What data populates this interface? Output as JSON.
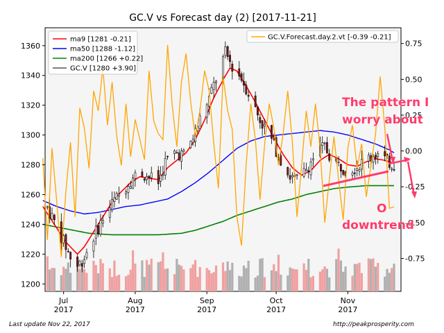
{
  "chart_data": {
    "type": "candlestick",
    "title": "GC.V vs Forecast day (2)  [2017-11-21]",
    "xlabel": "",
    "ylabel": "",
    "ylim": [
      1195,
      1372
    ],
    "ylim_right": [
      -0.98,
      0.86
    ],
    "x_ticks": [
      {
        "label": "Jul",
        "sub": "2017",
        "day": 9
      },
      {
        "label": "Aug",
        "sub": "2017",
        "day": 40
      },
      {
        "label": "Sep",
        "sub": "2017",
        "day": 71
      },
      {
        "label": "Oct",
        "sub": "2017",
        "day": 101
      },
      {
        "label": "Nov",
        "sub": "2017",
        "day": 132
      }
    ],
    "y_ticks_left": [
      1200,
      1220,
      1240,
      1260,
      1280,
      1300,
      1320,
      1340,
      1360
    ],
    "y_ticks_right": [
      "-0.75",
      "-0.50",
      "-0.25",
      "0.00",
      "0.25",
      "0.50",
      "0.75"
    ],
    "y_ticks_right_values": [
      -0.75,
      -0.5,
      -0.25,
      0.0,
      0.25,
      0.5,
      0.75
    ],
    "legend_left": [
      {
        "name": "ma9 [1281 -0.21]",
        "color": "#ff0000"
      },
      {
        "name": "ma50 [1288 -1.12]",
        "color": "#0000ff"
      },
      {
        "name": "ma200 [1266 +0.22]",
        "color": "#008000"
      },
      {
        "name": "GC.V [1280 +3.90]",
        "color": "#555555"
      }
    ],
    "legend_right": [
      {
        "name": "GC.V.Forecast.day.2.vt [-0.39 -0.21]",
        "color": "#ffa500"
      }
    ],
    "legend_placement": [
      "upper-left",
      "upper-right"
    ],
    "price_anchors": [
      [
        0,
        1258
      ],
      [
        3,
        1248
      ],
      [
        7,
        1235
      ],
      [
        10,
        1225
      ],
      [
        12,
        1218
      ],
      [
        15,
        1212
      ],
      [
        18,
        1218
      ],
      [
        22,
        1232
      ],
      [
        26,
        1244
      ],
      [
        30,
        1254
      ],
      [
        34,
        1262
      ],
      [
        38,
        1270
      ],
      [
        42,
        1275
      ],
      [
        46,
        1272
      ],
      [
        50,
        1268
      ],
      [
        53,
        1282
      ],
      [
        57,
        1288
      ],
      [
        61,
        1287
      ],
      [
        65,
        1298
      ],
      [
        69,
        1315
      ],
      [
        72,
        1325
      ],
      [
        76,
        1342
      ],
      [
        79,
        1355
      ],
      [
        82,
        1346
      ],
      [
        86,
        1338
      ],
      [
        90,
        1325
      ],
      [
        94,
        1310
      ],
      [
        98,
        1300
      ],
      [
        101,
        1290
      ],
      [
        104,
        1280
      ],
      [
        107,
        1272
      ],
      [
        110,
        1270
      ],
      [
        113,
        1275
      ],
      [
        116,
        1282
      ],
      [
        119,
        1290
      ],
      [
        122,
        1292
      ],
      [
        125,
        1284
      ],
      [
        128,
        1280
      ],
      [
        131,
        1277
      ],
      [
        134,
        1278
      ],
      [
        137,
        1280
      ],
      [
        140,
        1284
      ],
      [
        143,
        1287
      ],
      [
        146,
        1287
      ],
      [
        149,
        1282
      ],
      [
        152,
        1280
      ]
    ],
    "ma9_anchors": [
      [
        0,
        1252
      ],
      [
        5,
        1240
      ],
      [
        10,
        1228
      ],
      [
        15,
        1220
      ],
      [
        18,
        1225
      ],
      [
        22,
        1235
      ],
      [
        26,
        1245
      ],
      [
        30,
        1255
      ],
      [
        34,
        1262
      ],
      [
        38,
        1268
      ],
      [
        42,
        1272
      ],
      [
        46,
        1271
      ],
      [
        50,
        1270
      ],
      [
        54,
        1278
      ],
      [
        58,
        1283
      ],
      [
        62,
        1288
      ],
      [
        66,
        1297
      ],
      [
        70,
        1310
      ],
      [
        74,
        1325
      ],
      [
        78,
        1337
      ],
      [
        81,
        1345
      ],
      [
        84,
        1343
      ],
      [
        88,
        1333
      ],
      [
        92,
        1322
      ],
      [
        96,
        1310
      ],
      [
        100,
        1298
      ],
      [
        104,
        1287
      ],
      [
        108,
        1278
      ],
      [
        112,
        1273
      ],
      [
        116,
        1276
      ],
      [
        120,
        1283
      ],
      [
        124,
        1287
      ],
      [
        128,
        1284
      ],
      [
        132,
        1280
      ],
      [
        136,
        1279
      ],
      [
        140,
        1282
      ],
      [
        144,
        1284
      ],
      [
        148,
        1283
      ],
      [
        152,
        1281
      ]
    ],
    "ma50_anchors": [
      [
        0,
        1256
      ],
      [
        6,
        1252
      ],
      [
        12,
        1249
      ],
      [
        18,
        1247
      ],
      [
        24,
        1248
      ],
      [
        30,
        1250
      ],
      [
        36,
        1252
      ],
      [
        42,
        1253
      ],
      [
        48,
        1255
      ],
      [
        54,
        1257
      ],
      [
        60,
        1262
      ],
      [
        66,
        1268
      ],
      [
        72,
        1275
      ],
      [
        78,
        1283
      ],
      [
        84,
        1291
      ],
      [
        90,
        1296
      ],
      [
        96,
        1299
      ],
      [
        102,
        1300
      ],
      [
        108,
        1301
      ],
      [
        114,
        1302
      ],
      [
        120,
        1303
      ],
      [
        126,
        1302
      ],
      [
        132,
        1300
      ],
      [
        138,
        1297
      ],
      [
        144,
        1294
      ],
      [
        150,
        1290
      ],
      [
        152,
        1288
      ]
    ],
    "ma200_anchors": [
      [
        0,
        1240
      ],
      [
        10,
        1237
      ],
      [
        20,
        1234
      ],
      [
        30,
        1233
      ],
      [
        40,
        1233
      ],
      [
        50,
        1233
      ],
      [
        60,
        1234
      ],
      [
        66,
        1236
      ],
      [
        72,
        1239
      ],
      [
        78,
        1242
      ],
      [
        84,
        1246
      ],
      [
        90,
        1249
      ],
      [
        96,
        1252
      ],
      [
        102,
        1255
      ],
      [
        108,
        1257
      ],
      [
        114,
        1260
      ],
      [
        120,
        1262
      ],
      [
        126,
        1264
      ],
      [
        132,
        1265
      ],
      [
        140,
        1266
      ],
      [
        152,
        1266
      ]
    ],
    "forecast_anchors": [
      [
        0,
        -0.05
      ],
      [
        2,
        -0.62
      ],
      [
        4,
        0.02
      ],
      [
        6,
        -0.35
      ],
      [
        8,
        -0.74
      ],
      [
        10,
        -0.28
      ],
      [
        12,
        0.06
      ],
      [
        14,
        -0.46
      ],
      [
        16,
        0.3
      ],
      [
        18,
        0.16
      ],
      [
        20,
        -0.12
      ],
      [
        22,
        0.42
      ],
      [
        24,
        0.28
      ],
      [
        26,
        0.58
      ],
      [
        28,
        0.18
      ],
      [
        30,
        0.48
      ],
      [
        32,
        0.1
      ],
      [
        34,
        -0.1
      ],
      [
        36,
        0.33
      ],
      [
        38,
        -0.04
      ],
      [
        40,
        0.22
      ],
      [
        42,
        0.08
      ],
      [
        44,
        -0.06
      ],
      [
        46,
        0.56
      ],
      [
        48,
        0.21
      ],
      [
        50,
        0.12
      ],
      [
        52,
        0.08
      ],
      [
        54,
        0.74
      ],
      [
        56,
        0.32
      ],
      [
        58,
        0.03
      ],
      [
        60,
        0.48
      ],
      [
        62,
        0.68
      ],
      [
        64,
        0.34
      ],
      [
        66,
        0.1
      ],
      [
        68,
        0.28
      ],
      [
        70,
        0.56
      ],
      [
        72,
        0.42
      ],
      [
        74,
        0.05
      ],
      [
        76,
        -0.26
      ],
      [
        78,
        0.52
      ],
      [
        80,
        0.28
      ],
      [
        82,
        0.15
      ],
      [
        84,
        -0.46
      ],
      [
        86,
        -0.66
      ],
      [
        88,
        -0.1
      ],
      [
        90,
        0.33
      ],
      [
        92,
        0.08
      ],
      [
        94,
        -0.34
      ],
      [
        96,
        0.05
      ],
      [
        98,
        0.33
      ],
      [
        100,
        0.16
      ],
      [
        102,
        -0.1
      ],
      [
        104,
        0.12
      ],
      [
        106,
        0.42
      ],
      [
        108,
        0.06
      ],
      [
        110,
        -0.46
      ],
      [
        112,
        -0.1
      ],
      [
        114,
        0.28
      ],
      [
        116,
        0.03
      ],
      [
        118,
        0.33
      ],
      [
        120,
        0.02
      ],
      [
        122,
        -0.5
      ],
      [
        124,
        -0.2
      ],
      [
        126,
        0.1
      ],
      [
        128,
        -0.2
      ],
      [
        130,
        -0.48
      ],
      [
        132,
        0.02
      ],
      [
        134,
        0.18
      ],
      [
        136,
        -0.12
      ],
      [
        138,
        0.05
      ],
      [
        140,
        -0.32
      ],
      [
        142,
        -0.1
      ],
      [
        144,
        0.12
      ],
      [
        146,
        0.52
      ],
      [
        148,
        0.16
      ],
      [
        150,
        -0.4
      ],
      [
        152,
        -0.39
      ]
    ],
    "volume_scale_max": 1
  },
  "annotation": {
    "line1": "The pattern I",
    "line2": "worry about",
    "line3": "downtrend",
    "circle_glyph": "O"
  },
  "footer": {
    "left": "Last update Nov 22, 2017",
    "right": "http://peakprosperity.com"
  },
  "colors": {
    "candle_up": "#ffffff",
    "candle_down": "#8b1a1a",
    "annotation": "#ff3b6b",
    "plot_bg": "#f5f5f5"
  }
}
